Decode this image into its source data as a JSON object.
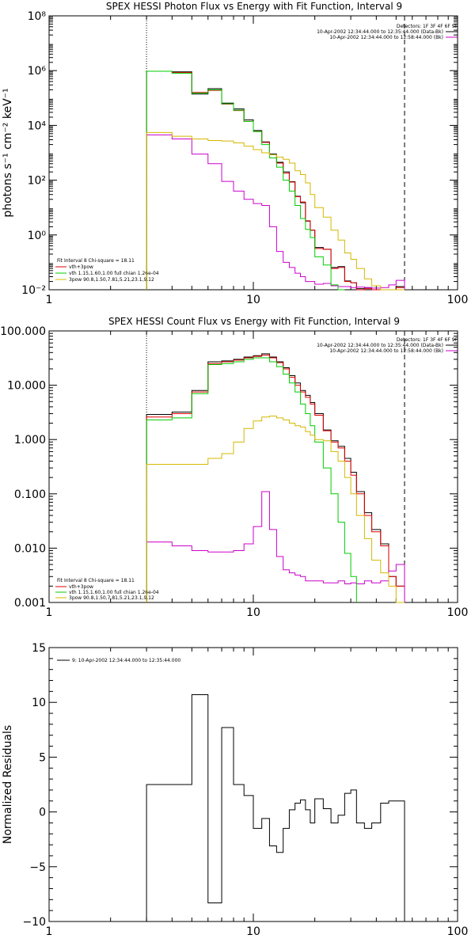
{
  "chart_data": [
    {
      "type": "line",
      "title": "SPEX HESSI Photon Flux vs Energy with Fit Function, Interval 9",
      "xlabel": "",
      "ylabel": "photons s⁻¹ cm⁻² keV⁻¹",
      "xscale": "log",
      "yscale": "log",
      "xlim": [
        1,
        100
      ],
      "ylim": [
        0.01,
        100000000
      ],
      "xticks": [
        1,
        10,
        100
      ],
      "xtick_labels": [
        "1",
        "10",
        "100"
      ],
      "yticks": [
        0.01,
        1,
        100,
        10000,
        1000000,
        100000000
      ],
      "ytick_labels": [
        "10⁻²",
        "10⁰",
        "10²",
        "10⁴",
        "10⁶",
        "10⁸"
      ],
      "vlines": [
        {
          "x": 3,
          "style": "dotted"
        },
        {
          "x": 55,
          "style": "dashed"
        }
      ],
      "legend_top": [
        "Detectors: 1F 3F 4F 6F 9F",
        "10-Apr-2002 12:34:44.000 to 12:35:44.000 (Data-Bk)",
        "10-Apr-2002 12:34:44.000 to 12:58:44.000 (Bk)"
      ],
      "legend_bottom": [
        "Fit Interval 8   Chi-square = 18.11",
        "vth+3pow",
        "vth 1.15,1.60,1.00  full chian 1.26e-04",
        "3pow 90.8,1.50,7.81,5.21,23.1,9.12"
      ],
      "bin_edges": [
        3,
        4,
        5,
        6,
        7,
        8,
        9,
        10,
        11,
        12,
        13,
        14,
        15,
        16,
        17,
        18,
        19,
        20,
        22,
        24,
        26,
        28,
        30,
        32,
        35,
        38,
        42,
        46,
        50,
        55
      ],
      "series": [
        {
          "name": "Data-Bk",
          "color": "#000000",
          "values": [
            950000,
            900000,
            140000,
            220000,
            65000,
            40000,
            16000,
            6500,
            2500,
            900,
            450,
            200,
            88,
            26,
            15,
            3.2,
            1.5,
            0.35,
            0.3,
            0.065,
            0.07,
            0.021,
            0.018,
            0.011,
            0.012,
            0.0075,
            0.0075,
            0.008,
            0.013
          ]
        },
        {
          "name": "vth+3pow",
          "color": "#e00000",
          "values": [
            950000,
            850000,
            160000,
            190000,
            60000,
            35000,
            14000,
            6000,
            2400,
            850,
            420,
            180,
            85,
            25,
            16,
            3.3,
            1.5,
            0.32,
            0.3,
            0.06,
            0.065,
            0.02,
            0.018,
            0.01,
            0.011,
            0.007,
            0.007,
            0.0075,
            0.012
          ]
        },
        {
          "name": "Bk",
          "color": "#cc00cc",
          "values": [
            4500,
            3200,
            900,
            400,
            90,
            40,
            20,
            14,
            12,
            2,
            0.25,
            0.1,
            0.065,
            0.04,
            0.03,
            0.02,
            0.02,
            0.016,
            0.017,
            0.014,
            0.013,
            0.013,
            0.012,
            0.0125,
            0.012,
            0.0115,
            0.012,
            0.015,
            0.022
          ]
        },
        {
          "name": "vth",
          "color": "#00cc00",
          "values": [
            950000,
            800000,
            150000,
            200000,
            62000,
            36000,
            14000,
            6000,
            2000,
            650,
            300,
            100,
            40,
            12,
            4,
            1.6,
            0.8,
            0.16,
            0.08,
            0.015,
            0.0075
          ]
        },
        {
          "name": "3pow",
          "color": "#d4b800",
          "values": [
            5500,
            4000,
            3200,
            2800,
            2700,
            2300,
            1750,
            1300,
            1000,
            850,
            700,
            580,
            420,
            220,
            160,
            80,
            30,
            10,
            4.5,
            1.5,
            0.65,
            0.22,
            0.13,
            0.06,
            0.025,
            0.014,
            0.01,
            0.009,
            0.01
          ]
        }
      ]
    },
    {
      "type": "line",
      "title": "SPEX HESSI Count Flux vs Energy with Fit Function, Interval 9",
      "xlabel": "",
      "ylabel": "",
      "xscale": "log",
      "yscale": "log",
      "xlim": [
        1,
        100
      ],
      "ylim": [
        0.001,
        100
      ],
      "xticks": [
        1,
        10,
        100
      ],
      "xtick_labels": [
        "1",
        "10",
        "100"
      ],
      "yticks": [
        0.001,
        0.01,
        0.1,
        1,
        10,
        100
      ],
      "ytick_labels": [
        "0.001",
        "0.010",
        "0.100",
        "1.000",
        "10.000",
        "100.000"
      ],
      "vlines": [
        {
          "x": 3,
          "style": "dotted"
        },
        {
          "x": 55,
          "style": "dashed"
        }
      ],
      "legend_top": [
        "Detectors: 1F 3F 4F 6F 9F",
        "10-Apr-2002 12:34:44.000 to 12:35:44.000 (Data-Bk)",
        "10-Apr-2002 12:34:44.000 to 12:58:44.000 (Bk)"
      ],
      "legend_bottom": [
        "Fit Interval 8   Chi-square = 18.11",
        "vth+3pow",
        "vth 1.15,1.60,1.00  full chian 1.26e-04",
        "3pow 90.8,1.50,7.81,5.21,23.1,9.12"
      ],
      "bin_edges": [
        3,
        4,
        5,
        6,
        7,
        8,
        9,
        10,
        11,
        12,
        13,
        14,
        15,
        16,
        17,
        18,
        19,
        20,
        22,
        24,
        26,
        28,
        30,
        32,
        35,
        38,
        42,
        46,
        50,
        55
      ],
      "series": [
        {
          "name": "Data-Bk",
          "color": "#000000",
          "values": [
            2.9,
            3.2,
            8,
            27,
            28,
            30,
            33,
            35,
            38,
            33,
            27,
            21,
            15,
            11,
            8,
            6.5,
            4.8,
            3.0,
            1.5,
            0.95,
            0.75,
            0.45,
            0.25,
            0.11,
            0.045,
            0.022,
            0.012,
            0.003,
            0.002
          ]
        },
        {
          "name": "vth+3pow",
          "color": "#e00000",
          "values": [
            2.6,
            3.0,
            7.5,
            25,
            27,
            29,
            32,
            34,
            36,
            32,
            26,
            20,
            14,
            10,
            7.5,
            6,
            4.5,
            2.8,
            1.45,
            0.9,
            0.7,
            0.4,
            0.22,
            0.1,
            0.04,
            0.02,
            0.011,
            0.003,
            0.002
          ]
        },
        {
          "name": "Bk",
          "color": "#cc00cc",
          "values": [
            0.013,
            0.011,
            0.009,
            0.0085,
            0.0085,
            0.009,
            0.012,
            0.025,
            0.11,
            0.022,
            0.007,
            0.004,
            0.0035,
            0.0032,
            0.003,
            0.0025,
            0.0025,
            0.0025,
            0.0023,
            0.0023,
            0.0025,
            0.0022,
            0.0023,
            0.0022,
            0.0025,
            0.0023,
            0.0025,
            0.0038,
            0.005
          ]
        },
        {
          "name": "vth",
          "color": "#00cc00",
          "values": [
            2.3,
            2.5,
            7,
            24,
            25,
            27,
            30,
            32,
            32,
            27,
            22,
            16,
            11,
            7.5,
            4.5,
            3.0,
            1.8,
            0.9,
            0.3,
            0.1,
            0.03,
            0.008,
            0.003
          ]
        },
        {
          "name": "3pow",
          "color": "#d4b800",
          "values": [
            0.35,
            0.35,
            0.35,
            0.45,
            0.55,
            0.9,
            1.6,
            2.2,
            2.6,
            2.7,
            2.5,
            2.3,
            2.0,
            1.8,
            1.7,
            1.4,
            1.2,
            1.0,
            0.95,
            0.6,
            0.4,
            0.2,
            0.1,
            0.04,
            0.015,
            0.006,
            0.0035,
            0.002,
            0.001
          ]
        }
      ]
    },
    {
      "type": "line",
      "title": "",
      "xlabel": "",
      "ylabel": "Normalized Residuals",
      "xscale": "log",
      "yscale": "linear",
      "xlim": [
        1,
        100
      ],
      "ylim": [
        -10,
        15
      ],
      "xticks": [
        1,
        10,
        100
      ],
      "xtick_labels": [
        "1",
        "10",
        "100"
      ],
      "yticks": [
        -10,
        -5,
        0,
        5,
        10,
        15
      ],
      "ytick_labels": [
        "−10",
        "−5",
        "0",
        "5",
        "10",
        "15"
      ],
      "legend_top": [],
      "legend_bottom": [],
      "legend_left": "9: 10-Apr-2002 12:34:44.000 to 12:35:44.000",
      "bin_edges": [
        3,
        4,
        5,
        6,
        7,
        8,
        9,
        10,
        11,
        12,
        13,
        14,
        15,
        16,
        17,
        18,
        19,
        20,
        22,
        24,
        26,
        28,
        30,
        32,
        35,
        38,
        42,
        46,
        50,
        55
      ],
      "series": [
        {
          "name": "9: 10-Apr-2002 12:34:44.000 to 12:35:44.000",
          "color": "#000000",
          "values": [
            2.5,
            2.5,
            10.7,
            -8.3,
            7.7,
            2.5,
            1.5,
            -1.5,
            -0.6,
            -3.1,
            -3.7,
            -1.5,
            0.2,
            0.8,
            1.1,
            0.2,
            -1.0,
            1.2,
            0.3,
            -1.0,
            -0.3,
            1.7,
            2.0,
            -1.0,
            -1.5,
            -1.0,
            0.8,
            1.0,
            1.0
          ]
        }
      ]
    }
  ]
}
